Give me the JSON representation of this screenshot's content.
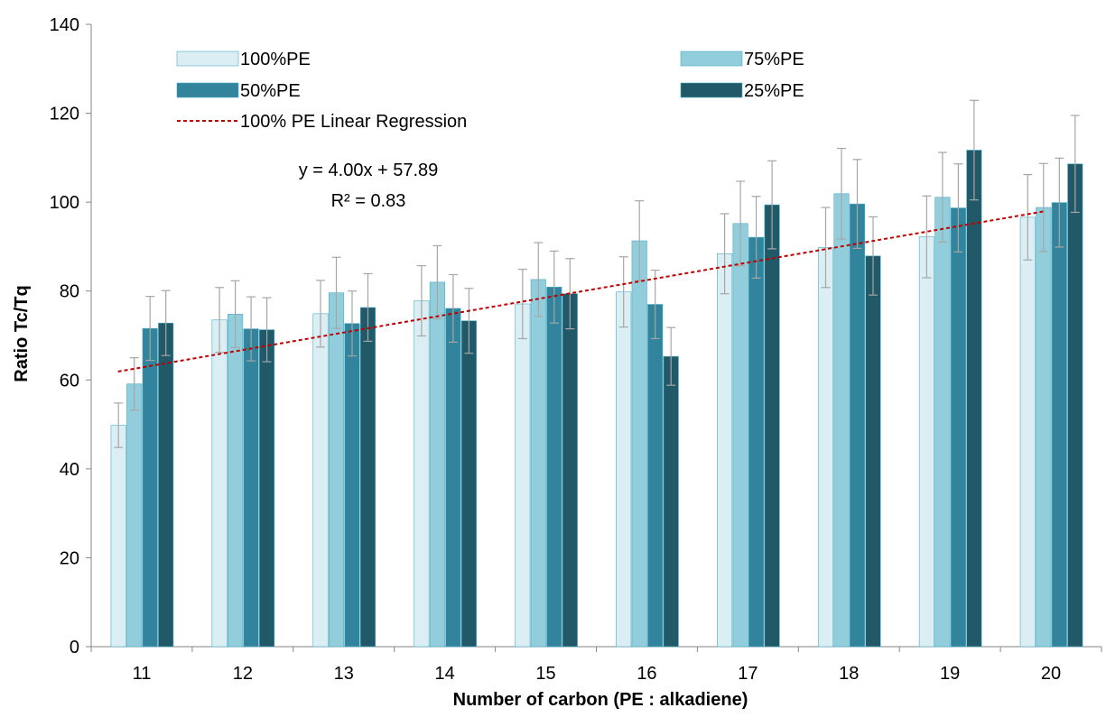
{
  "chart_data": {
    "type": "bar",
    "xlabel": "Number of carbon  (PE : alkadiene)",
    "ylabel": "Ratio Tc/Tq",
    "ylim": [
      0,
      140
    ],
    "yticks": [
      "0",
      "20",
      "40",
      "60",
      "80",
      "100",
      "120",
      "140"
    ],
    "categories": [
      "11",
      "12",
      "13",
      "14",
      "15",
      "16",
      "17",
      "18",
      "19",
      "20"
    ],
    "series": [
      {
        "name": "100%PE",
        "color": "#daeef3",
        "values": [
          49.8,
          73.5,
          74.9,
          77.8,
          77.1,
          79.8,
          88.4,
          89.8,
          92.2,
          96.6
        ],
        "errors": [
          5.0,
          7.3,
          7.5,
          7.9,
          7.8,
          7.9,
          9.0,
          9.0,
          9.2,
          9.6
        ]
      },
      {
        "name": "75%PE",
        "color": "#92cddc",
        "values": [
          59.1,
          74.8,
          79.6,
          82.0,
          82.6,
          91.3,
          95.2,
          101.9,
          101.1,
          98.8
        ],
        "errors": [
          5.9,
          7.5,
          8.0,
          8.2,
          8.3,
          9.0,
          9.5,
          10.2,
          10.1,
          9.9
        ]
      },
      {
        "name": "50%PE",
        "color": "#31849b",
        "values": [
          71.6,
          71.5,
          72.7,
          76.1,
          80.9,
          77.0,
          92.1,
          99.6,
          98.7,
          99.9
        ],
        "errors": [
          7.2,
          7.2,
          7.3,
          7.6,
          8.1,
          7.7,
          9.2,
          10.0,
          9.9,
          10.0
        ]
      },
      {
        "name": "25%PE",
        "color": "#215968",
        "values": [
          72.8,
          71.3,
          76.3,
          73.3,
          79.4,
          65.3,
          99.4,
          87.9,
          111.7,
          108.6
        ],
        "errors": [
          7.3,
          7.2,
          7.6,
          7.3,
          7.9,
          6.5,
          9.9,
          8.8,
          11.2,
          10.9
        ]
      }
    ],
    "trendline": {
      "name": "100% PE Linear Regression",
      "color": "#c00000",
      "slope": 4.0,
      "intercept": 57.89,
      "x_range": [
        11,
        20
      ],
      "equation": "y = 4.00x + 57.89",
      "r2": "R² = 0.83"
    },
    "grid": false,
    "legend": "top"
  }
}
